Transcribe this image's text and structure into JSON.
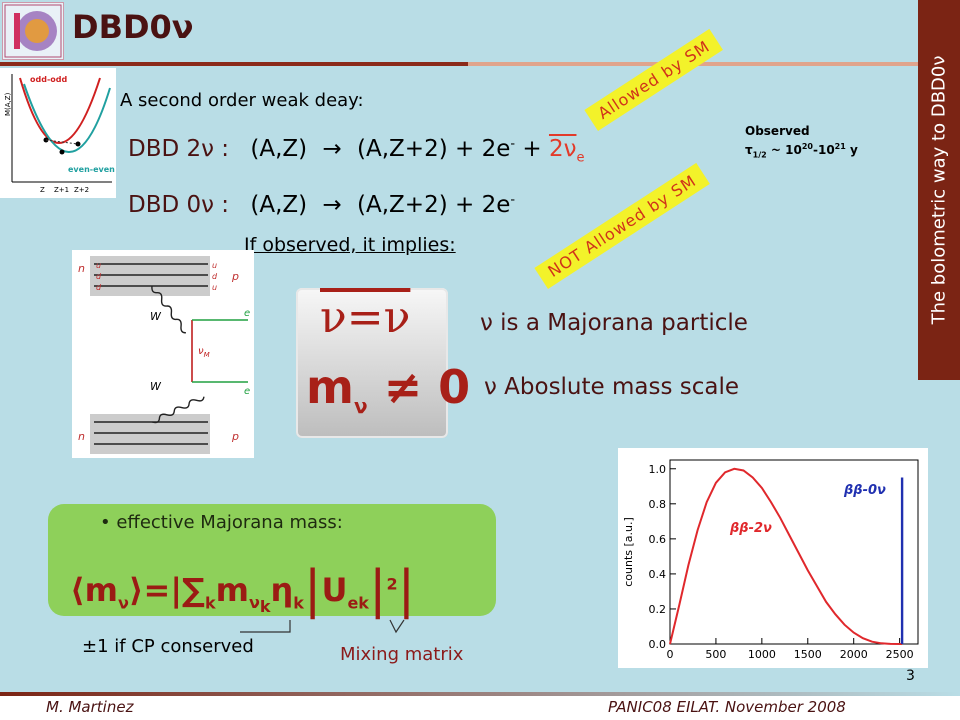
{
  "header": {
    "title": "DBD0ν",
    "sidebar_text": "The bolometric way to DBD0ν"
  },
  "main": {
    "subtitle": "A second order weak deay:",
    "eq_2nu": {
      "label": "DBD 2ν :",
      "lhs": "(A,Z)",
      "arrow": "→",
      "rhs": "(A,Z+2) + 2e",
      "sup": "-",
      "plus": "+",
      "red": "2ν",
      "red_sub": "e"
    },
    "eq_0nu": {
      "label": "DBD 0ν :",
      "lhs": "(A,Z)",
      "arrow": "→",
      "rhs": "(A,Z+2) + 2e",
      "sup": "-"
    },
    "observed_line1": "Observed",
    "observed_tau": "τ",
    "observed_sub": "1/2",
    "observed_val": " ~ 10",
    "observed_sup1": "20",
    "observed_dash": "-10",
    "observed_sup2": "21",
    "observed_unit": " y",
    "tag_allowed": "Allowed by SM",
    "tag_not_allowed": "NOT Allowed by SM",
    "implies": "If observed, it implies:",
    "nu_eq": "ν=ν",
    "m_neq_m": "m",
    "m_neq_sub": "ν",
    "m_neq_rest": "≠ 0",
    "bullet1": "ν is a Majorana particle",
    "bullet2": "ν Aboslute mass scale",
    "eff_label": "• effective Majorana mass:",
    "cp_label": "±1 if CP conserved",
    "mixing_label": "Mixing matrix"
  },
  "inset": {
    "ylabel": "M(A,Z)",
    "odd": "odd-odd",
    "even": "even-even",
    "x1": "Z",
    "x2": "Z+1",
    "x3": "Z+2"
  },
  "feynman": {
    "n": "n",
    "p": "p",
    "W": "W",
    "nuM": "ν",
    "nuM_sub": "M",
    "e": "e",
    "u": "u",
    "d": "d"
  },
  "chart_data": {
    "type": "line",
    "xlabel": "",
    "ylabel": "counts [a.u.]",
    "xlim": [
      0,
      2700
    ],
    "ylim": [
      0,
      1.05
    ],
    "x_ticks": [
      0,
      500,
      1000,
      1500,
      2000,
      2500
    ],
    "y_ticks": [
      0.0,
      0.2,
      0.4,
      0.6,
      0.8,
      1.0
    ],
    "series": [
      {
        "name": "ββ-2ν",
        "color": "#e0282c",
        "x": [
          0,
          100,
          200,
          300,
          400,
          500,
          600,
          700,
          800,
          900,
          1000,
          1100,
          1200,
          1300,
          1400,
          1500,
          1600,
          1700,
          1800,
          1900,
          2000,
          2100,
          2200,
          2300,
          2400,
          2527
        ],
        "y": [
          0.0,
          0.22,
          0.45,
          0.65,
          0.81,
          0.92,
          0.98,
          1.0,
          0.99,
          0.95,
          0.89,
          0.81,
          0.72,
          0.62,
          0.52,
          0.42,
          0.33,
          0.24,
          0.17,
          0.11,
          0.065,
          0.033,
          0.013,
          0.004,
          0.0008,
          0.0
        ]
      },
      {
        "name": "ββ-0ν",
        "color": "#2030b0",
        "x": [
          2527,
          2527
        ],
        "y": [
          0.0,
          0.95
        ]
      }
    ]
  },
  "footer": {
    "author": "M. Martinez",
    "conf": "PANIC08   EILAT. November 2008",
    "page": "3"
  }
}
